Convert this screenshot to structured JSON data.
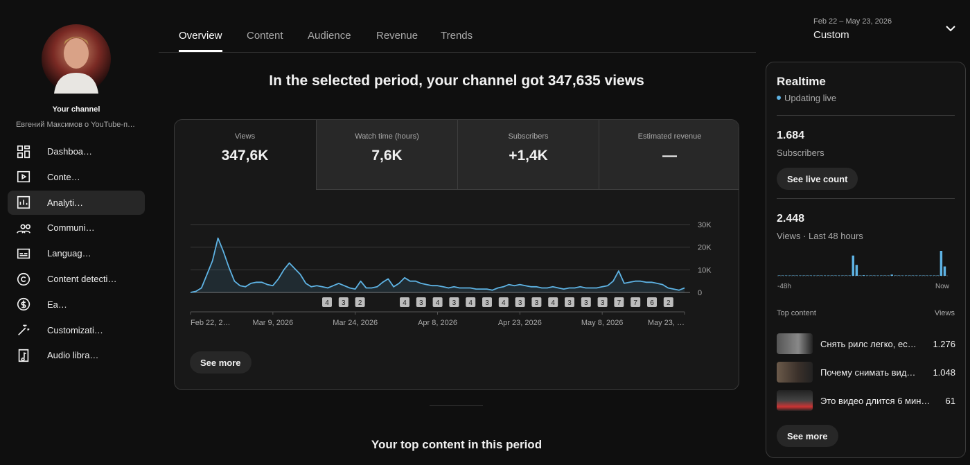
{
  "sidebar": {
    "channel_label": "Your channel",
    "channel_name": "Евгений Максимов о YouTube-п…",
    "nav": [
      "Dashboa…",
      "Conte…",
      "Analyti…",
      "Communi…",
      "Languag…",
      "Content detecti…",
      "Ea…",
      "Customizati…",
      "Audio libra…"
    ],
    "active_nav": 2
  },
  "tabs": {
    "items": [
      "Overview",
      "Content",
      "Audience",
      "Revenue",
      "Trends"
    ],
    "active": 0
  },
  "date_range": {
    "range": "Feb 22 – May 23, 2026",
    "preset": "Custom"
  },
  "headline": "In the selected period, your channel got 347,635 views",
  "metrics": [
    {
      "label": "Views",
      "value": "347,6K"
    },
    {
      "label": "Watch time (hours)",
      "value": "7,6K"
    },
    {
      "label": "Subscribers",
      "value": "+1,4K"
    },
    {
      "label": "Estimated revenue",
      "value": "—"
    }
  ],
  "chart_data": [
    {
      "type": "line",
      "categories": [
        "Feb 22, 2…",
        null,
        null,
        null,
        null,
        null,
        null,
        null,
        null,
        null,
        null,
        null,
        null,
        null,
        null,
        "Mar 9, 2026",
        null,
        null,
        null,
        null,
        null,
        null,
        null,
        null,
        null,
        null,
        null,
        null,
        null,
        null,
        "Mar 24, 2026",
        null,
        null,
        null,
        null,
        null,
        null,
        null,
        null,
        null,
        null,
        null,
        null,
        null,
        null,
        "Apr 8, 2026",
        null,
        null,
        null,
        null,
        null,
        null,
        null,
        null,
        null,
        null,
        null,
        null,
        null,
        null,
        "Apr 23, 2026",
        null,
        null,
        null,
        null,
        null,
        null,
        null,
        null,
        null,
        null,
        null,
        null,
        null,
        null,
        "May 8, 2026",
        null,
        null,
        null,
        null,
        null,
        null,
        null,
        null,
        null,
        null,
        null,
        null,
        null,
        null,
        "May 23, …"
      ],
      "values": [
        0,
        500,
        2000,
        8000,
        14000,
        24000,
        18000,
        11000,
        5000,
        3000,
        2500,
        4000,
        4500,
        4500,
        3500,
        3000,
        6000,
        10000,
        13000,
        10500,
        8000,
        4000,
        2500,
        3000,
        2500,
        2000,
        3000,
        4000,
        3000,
        2000,
        1500,
        5000,
        2000,
        2000,
        2500,
        4500,
        6000,
        2500,
        4000,
        6500,
        5000,
        5000,
        4000,
        3500,
        3000,
        3000,
        2500,
        2000,
        2500,
        2000,
        2000,
        2000,
        1500,
        1500,
        1500,
        1000,
        2000,
        2500,
        3500,
        3000,
        3500,
        3000,
        2500,
        2500,
        2000,
        2000,
        2500,
        2000,
        1500,
        2000,
        2000,
        2500,
        2000,
        2000,
        2000,
        2500,
        3000,
        5000,
        9500,
        4000,
        4500,
        5000,
        5000,
        4500,
        4500,
        4000,
        3500,
        2000,
        1500,
        1000,
        2000
      ],
      "color": "#5eb3e4",
      "ylim": [
        0,
        30000
      ],
      "yticks": [
        0,
        {
          "value": 10000,
          "label": "10K"
        },
        {
          "value": 20000,
          "label": "20K"
        },
        {
          "value": 30000,
          "label": "30K"
        }
      ],
      "grid": true
    },
    {
      "type": "bar",
      "categories": [
        "-48h",
        null,
        null,
        null,
        null,
        null,
        null,
        null,
        null,
        null,
        null,
        null,
        null,
        null,
        null,
        null,
        null,
        null,
        null,
        null,
        null,
        null,
        null,
        null,
        null,
        null,
        null,
        null,
        null,
        null,
        null,
        null,
        null,
        null,
        null,
        null,
        null,
        null,
        null,
        null,
        null,
        null,
        null,
        null,
        null,
        null,
        null,
        "Now"
      ],
      "values": [
        7,
        7,
        7,
        7,
        7,
        7,
        7,
        7,
        7,
        7,
        7,
        7,
        7,
        7,
        7,
        7,
        7,
        7,
        7,
        7,
        7,
        650,
        350,
        7,
        20,
        7,
        7,
        7,
        7,
        7,
        7,
        7,
        40,
        7,
        7,
        7,
        7,
        7,
        7,
        7,
        7,
        7,
        7,
        7,
        7,
        7,
        800,
        300
      ],
      "color": "#5eb3e4"
    }
  ],
  "upload_markers": [
    [
      "4",
      "3",
      "2"
    ],
    [
      "4",
      "3",
      "4",
      "3",
      "4",
      "3",
      "4",
      "3",
      "3",
      "4",
      "3",
      "3",
      "3",
      "7",
      "7",
      "6",
      "2"
    ]
  ],
  "see_more": "See more",
  "top_content_heading": "Your top content in this period",
  "realtime": {
    "title": "Realtime",
    "status": "Updating live",
    "subscribers_value": "1.684",
    "subscribers_label": "Subscribers",
    "live_count_button": "See live count",
    "views_value": "2.448",
    "views_label": "Views · Last 48 hours",
    "top_content_label": "Top content",
    "views_column": "Views",
    "top_content": [
      {
        "title": "Снять рилс легко, ес…",
        "views": "1.276"
      },
      {
        "title": "Почему снимать вид…",
        "views": "1.048"
      },
      {
        "title": "Это видео длится 6 мин…",
        "views": "61"
      }
    ],
    "see_more": "See more"
  }
}
